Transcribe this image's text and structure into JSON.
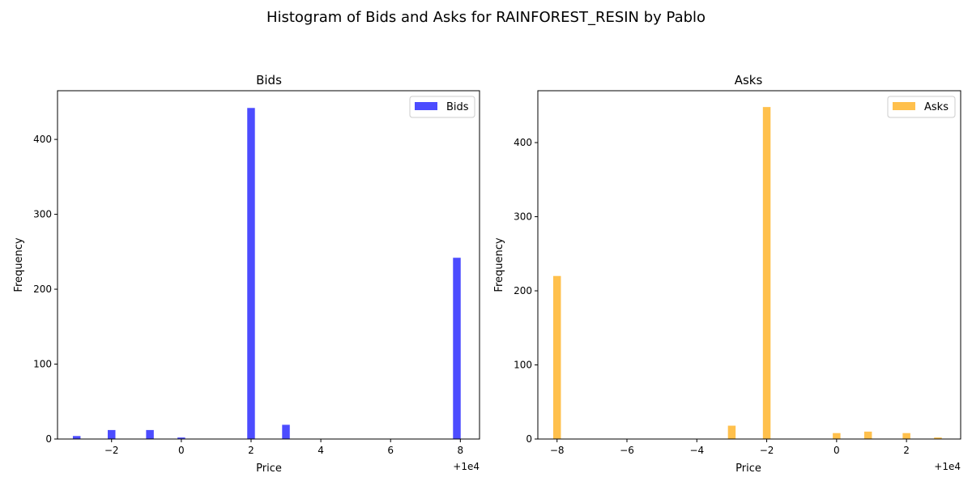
{
  "figure_title": "Histogram of Bids and Asks for RAINFOREST_RESIN by Pablo",
  "chart_data": [
    {
      "type": "bar",
      "title": "Bids",
      "xlabel": "Price",
      "ylabel": "Frequency",
      "offset_label": "+1e4",
      "x_offset": 10000,
      "xlim": [
        -3.55,
        8.55
      ],
      "ylim": [
        0,
        465
      ],
      "xticks": [
        -2,
        0,
        2,
        4,
        6,
        8
      ],
      "xtick_labels": [
        "−2",
        "0",
        "2",
        "4",
        "6",
        "8"
      ],
      "yticks": [
        0,
        100,
        200,
        300,
        400
      ],
      "ytick_labels": [
        "0",
        "100",
        "200",
        "300",
        "400"
      ],
      "bin_width": 0.22,
      "legend": {
        "label": "Bids",
        "placement": "upper right"
      },
      "color": "#0000ff",
      "alpha": 0.7,
      "bars": [
        {
          "x": -3.0,
          "value": 4
        },
        {
          "x": -2.0,
          "value": 12
        },
        {
          "x": -0.9,
          "value": 12
        },
        {
          "x": 0.0,
          "value": 2
        },
        {
          "x": 2.0,
          "value": 442
        },
        {
          "x": 3.0,
          "value": 19
        },
        {
          "x": 7.9,
          "value": 242
        }
      ],
      "grid": false
    },
    {
      "type": "bar",
      "title": "Asks",
      "xlabel": "Price",
      "ylabel": "Frequency",
      "offset_label": "+1e4",
      "x_offset": 10000,
      "xlim": [
        -8.55,
        3.55
      ],
      "ylim": [
        0,
        470
      ],
      "xticks": [
        -8,
        -6,
        -4,
        -2,
        0,
        2
      ],
      "xtick_labels": [
        "−8",
        "−6",
        "−4",
        "−2",
        "0",
        "2"
      ],
      "yticks": [
        0,
        100,
        200,
        300,
        400
      ],
      "ytick_labels": [
        "0",
        "100",
        "200",
        "300",
        "400"
      ],
      "bin_width": 0.22,
      "legend": {
        "label": "Asks",
        "placement": "upper right"
      },
      "color": "#ffa500",
      "alpha": 0.7,
      "bars": [
        {
          "x": -8.0,
          "value": 220
        },
        {
          "x": -3.0,
          "value": 18
        },
        {
          "x": -2.0,
          "value": 448
        },
        {
          "x": 0.0,
          "value": 8
        },
        {
          "x": 0.9,
          "value": 10
        },
        {
          "x": 2.0,
          "value": 8
        },
        {
          "x": 2.9,
          "value": 2
        }
      ],
      "grid": false
    }
  ]
}
